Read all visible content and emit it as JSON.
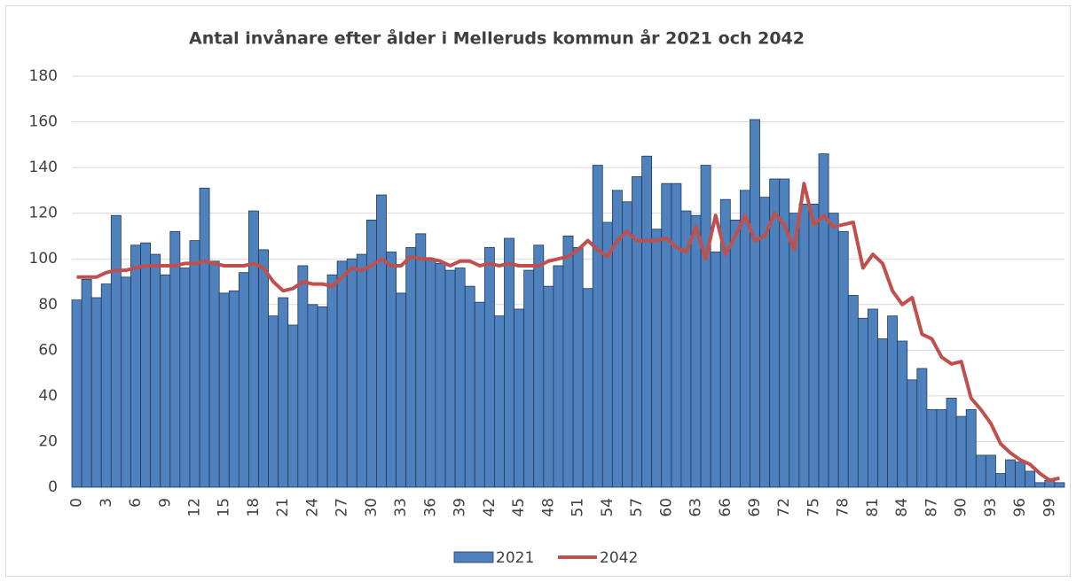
{
  "chart_data": {
    "type": "bar-line",
    "title": "Antal invånare efter ålder i Melleruds kommun år 2021 och 2042",
    "categories": [
      "0",
      null,
      null,
      "3",
      null,
      null,
      "6",
      null,
      null,
      "9",
      null,
      null,
      "12",
      null,
      null,
      "15",
      null,
      null,
      "18",
      null,
      null,
      "21",
      null,
      null,
      "24",
      null,
      null,
      "27",
      null,
      null,
      "30",
      null,
      null,
      "33",
      null,
      null,
      "36",
      null,
      null,
      "39",
      null,
      null,
      "42",
      null,
      null,
      "45",
      null,
      null,
      "48",
      null,
      null,
      "51",
      null,
      null,
      "54",
      null,
      null,
      "57",
      null,
      null,
      "60",
      null,
      null,
      "63",
      null,
      null,
      "66",
      null,
      null,
      "69",
      null,
      null,
      "72",
      null,
      null,
      "75",
      null,
      null,
      "78",
      null,
      null,
      "81",
      null,
      null,
      "84",
      null,
      null,
      "87",
      null,
      null,
      "90",
      null,
      null,
      "93",
      null,
      null,
      "96",
      null,
      null,
      "99",
      null
    ],
    "series": [
      {
        "name": "2021",
        "kind": "bar",
        "color": "#4f81bd",
        "values": [
          82,
          91,
          83,
          89,
          119,
          92,
          106,
          107,
          102,
          93,
          112,
          96,
          108,
          131,
          99,
          85,
          86,
          94,
          121,
          104,
          75,
          83,
          71,
          97,
          80,
          79,
          93,
          99,
          100,
          102,
          117,
          128,
          103,
          85,
          105,
          111,
          100,
          98,
          95,
          96,
          88,
          81,
          105,
          75,
          109,
          78,
          95,
          106,
          88,
          97,
          110,
          105,
          87,
          141,
          116,
          130,
          125,
          136,
          145,
          113,
          133,
          133,
          121,
          119,
          141,
          103,
          126,
          117,
          130,
          161,
          127,
          135,
          135,
          120,
          124,
          124,
          146,
          120,
          112,
          84,
          74,
          78,
          65,
          75,
          64,
          47,
          52,
          34,
          34,
          39,
          31,
          34,
          14,
          14,
          6,
          12,
          11,
          7,
          2,
          3,
          2
        ]
      },
      {
        "name": "2042",
        "kind": "line",
        "color": "#c0504d",
        "values": [
          92,
          92,
          92,
          94,
          95,
          95,
          96,
          97,
          97,
          97,
          97,
          98,
          98,
          99,
          98,
          97,
          97,
          97,
          98,
          96,
          90,
          86,
          87,
          90,
          89,
          89,
          88,
          92,
          96,
          95,
          97,
          100,
          97,
          97,
          101,
          100,
          100,
          99,
          97,
          99,
          99,
          97,
          98,
          97,
          98,
          97,
          97,
          97,
          99,
          100,
          101,
          104,
          108,
          104,
          101,
          108,
          112,
          108,
          108,
          108,
          109,
          105,
          103,
          114,
          100,
          119,
          102,
          110,
          119,
          108,
          110,
          120,
          115,
          104,
          133,
          115,
          119,
          114,
          115,
          116,
          96,
          102,
          98,
          86,
          80,
          83,
          67,
          65,
          57,
          54,
          55,
          39,
          34,
          28,
          19,
          15,
          12,
          10,
          6,
          3,
          4
        ]
      }
    ],
    "ylim": [
      0,
      180
    ],
    "yticks": [
      0,
      20,
      40,
      60,
      80,
      100,
      120,
      140,
      160,
      180
    ],
    "grid": true,
    "legend": "bottom"
  }
}
